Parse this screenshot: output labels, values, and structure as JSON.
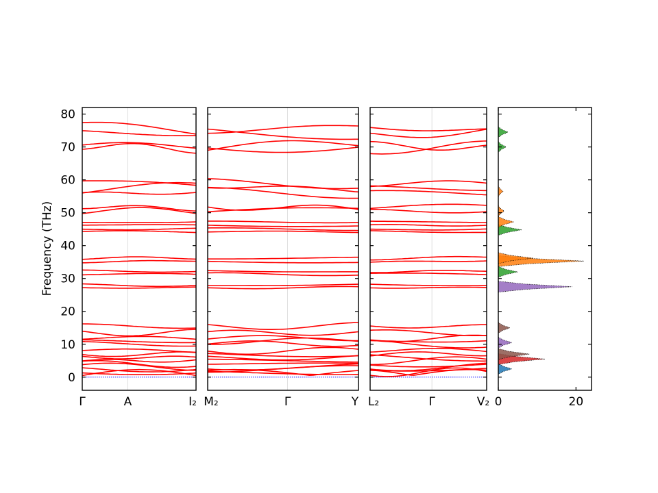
{
  "chart_data": {
    "type": "line",
    "ylabel": "Frequency (THz)",
    "ylim": [
      -4,
      82
    ],
    "y_ticks": [
      0,
      10,
      20,
      30,
      40,
      50,
      60,
      70,
      80
    ],
    "band_color": "#ff0000",
    "zero_line_color": "#0000ff",
    "grid": false,
    "panels": [
      {
        "id": "gamma-a-i2",
        "x_ticks": [
          "Γ",
          "A",
          "I₂"
        ]
      },
      {
        "id": "m2-gamma-y",
        "x_ticks": [
          "M₂",
          "Γ",
          "Y"
        ]
      },
      {
        "id": "l2-gamma-v2",
        "x_ticks": [
          "L₂",
          "Γ",
          "V₂"
        ]
      }
    ],
    "band_centers_thz": [
      0.5,
      1.5,
      2.5,
      3.2,
      4.0,
      5.0,
      6.0,
      7.0,
      8.0,
      10.2,
      11.0,
      11.8,
      13.5,
      15.5,
      27.2,
      28.0,
      31.3,
      32.2,
      35.2,
      36.2,
      44.2,
      45.0,
      46.2,
      47.2,
      50.5,
      51.5,
      56.0,
      57.5,
      58.8,
      69.8,
      70.2,
      74.2,
      75.5
    ],
    "dos": {
      "x_ticks": [
        0,
        20
      ],
      "xlim": [
        0,
        24
      ],
      "peaks": [
        {
          "freq": 2.5,
          "dos": 3.5,
          "color": "#1f77b4"
        },
        {
          "freq": 5.5,
          "dos": 12.0,
          "color": "#d62728"
        },
        {
          "freq": 7.0,
          "dos": 8.0,
          "color": "#8c564b"
        },
        {
          "freq": 10.5,
          "dos": 3.5,
          "color": "#9467bd"
        },
        {
          "freq": 15.0,
          "dos": 3.0,
          "color": "#8c564b"
        },
        {
          "freq": 27.5,
          "dos": 19.0,
          "color": "#9467bd"
        },
        {
          "freq": 32.0,
          "dos": 5.0,
          "color": "#2ca02c"
        },
        {
          "freq": 35.3,
          "dos": 22.0,
          "color": "#ff7f0e"
        },
        {
          "freq": 36.2,
          "dos": 9.0,
          "color": "#ff7f0e"
        },
        {
          "freq": 44.8,
          "dos": 6.0,
          "color": "#2ca02c"
        },
        {
          "freq": 47.2,
          "dos": 4.0,
          "color": "#ff7f0e"
        },
        {
          "freq": 50.5,
          "dos": 1.5,
          "color": "#ff7f0e"
        },
        {
          "freq": 56.5,
          "dos": 1.2,
          "color": "#ff7f0e"
        },
        {
          "freq": 70.0,
          "dos": 2.0,
          "color": "#2ca02c"
        },
        {
          "freq": 74.5,
          "dos": 2.5,
          "color": "#2ca02c"
        }
      ]
    }
  }
}
